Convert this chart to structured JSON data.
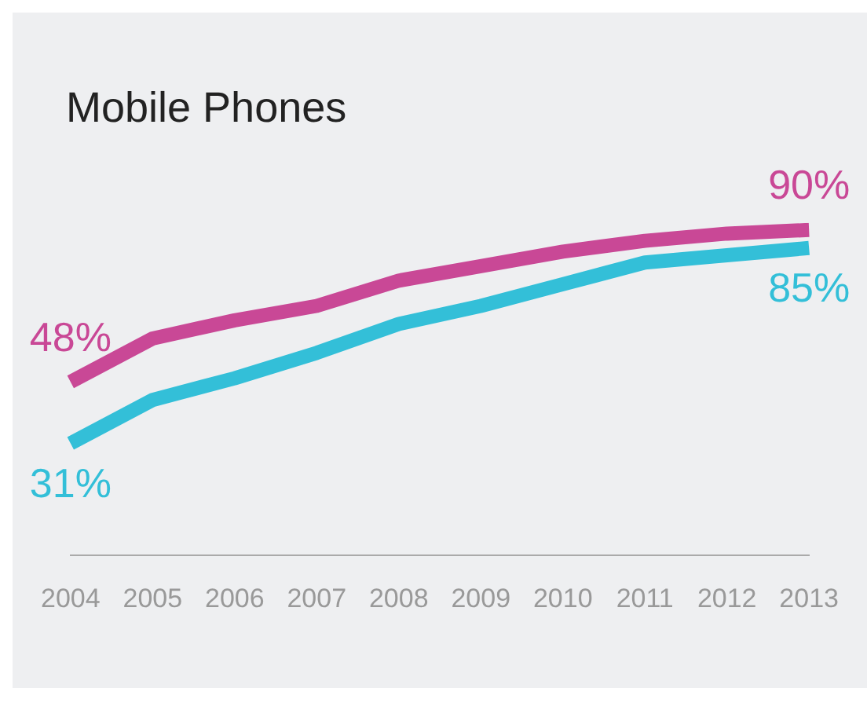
{
  "chart_data": {
    "type": "line",
    "title": "Mobile Phones",
    "categories": [
      "2004",
      "2005",
      "2006",
      "2007",
      "2008",
      "2009",
      "2010",
      "2011",
      "2012",
      "2013"
    ],
    "series": [
      {
        "color": "#c94896",
        "values": [
          48,
          60,
          65,
          69,
          76,
          80,
          84,
          87,
          89,
          90
        ],
        "value_labels": [
          "48%",
          null,
          null,
          null,
          null,
          null,
          null,
          null,
          null,
          "90%"
        ]
      },
      {
        "color": "#33bfd8",
        "values": [
          31,
          43,
          49,
          56,
          64,
          69,
          75,
          81,
          83,
          85
        ],
        "value_labels": [
          "31%",
          null,
          null,
          null,
          null,
          null,
          null,
          null,
          null,
          "85%"
        ]
      }
    ],
    "grid": false,
    "legend": false,
    "marker": "none",
    "line_style": "solid"
  }
}
